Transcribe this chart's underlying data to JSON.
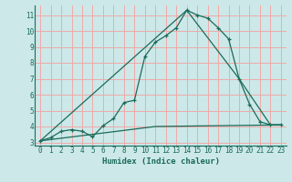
{
  "xlabel": "Humidex (Indice chaleur)",
  "bg_color": "#cce8e8",
  "line_color": "#1a6b5a",
  "grid_color": "#f0aaaa",
  "xlim": [
    -0.5,
    23.5
  ],
  "ylim": [
    2.8,
    11.6
  ],
  "xticks": [
    0,
    1,
    2,
    3,
    4,
    5,
    6,
    7,
    8,
    9,
    10,
    11,
    12,
    13,
    14,
    15,
    16,
    17,
    18,
    19,
    20,
    21,
    22,
    23
  ],
  "yticks": [
    3,
    4,
    5,
    6,
    7,
    8,
    9,
    10,
    11
  ],
  "line1_x": [
    0,
    1,
    2,
    3,
    4,
    5,
    6,
    7,
    8,
    9,
    10,
    11,
    12,
    13,
    14,
    15,
    16,
    17,
    18,
    19,
    20,
    21,
    22,
    23
  ],
  "line1_y": [
    3.1,
    3.3,
    3.7,
    3.8,
    3.7,
    3.35,
    4.05,
    4.5,
    5.5,
    5.65,
    8.4,
    9.3,
    9.7,
    10.2,
    11.3,
    11.0,
    10.8,
    10.2,
    9.5,
    7.0,
    5.4,
    4.3,
    4.1,
    4.1
  ],
  "line2_x": [
    0,
    14,
    19,
    22,
    23
  ],
  "line2_y": [
    3.1,
    11.3,
    7.0,
    4.1,
    4.1
  ],
  "line3_x": [
    0,
    11,
    23
  ],
  "line3_y": [
    3.1,
    4.0,
    4.1
  ]
}
